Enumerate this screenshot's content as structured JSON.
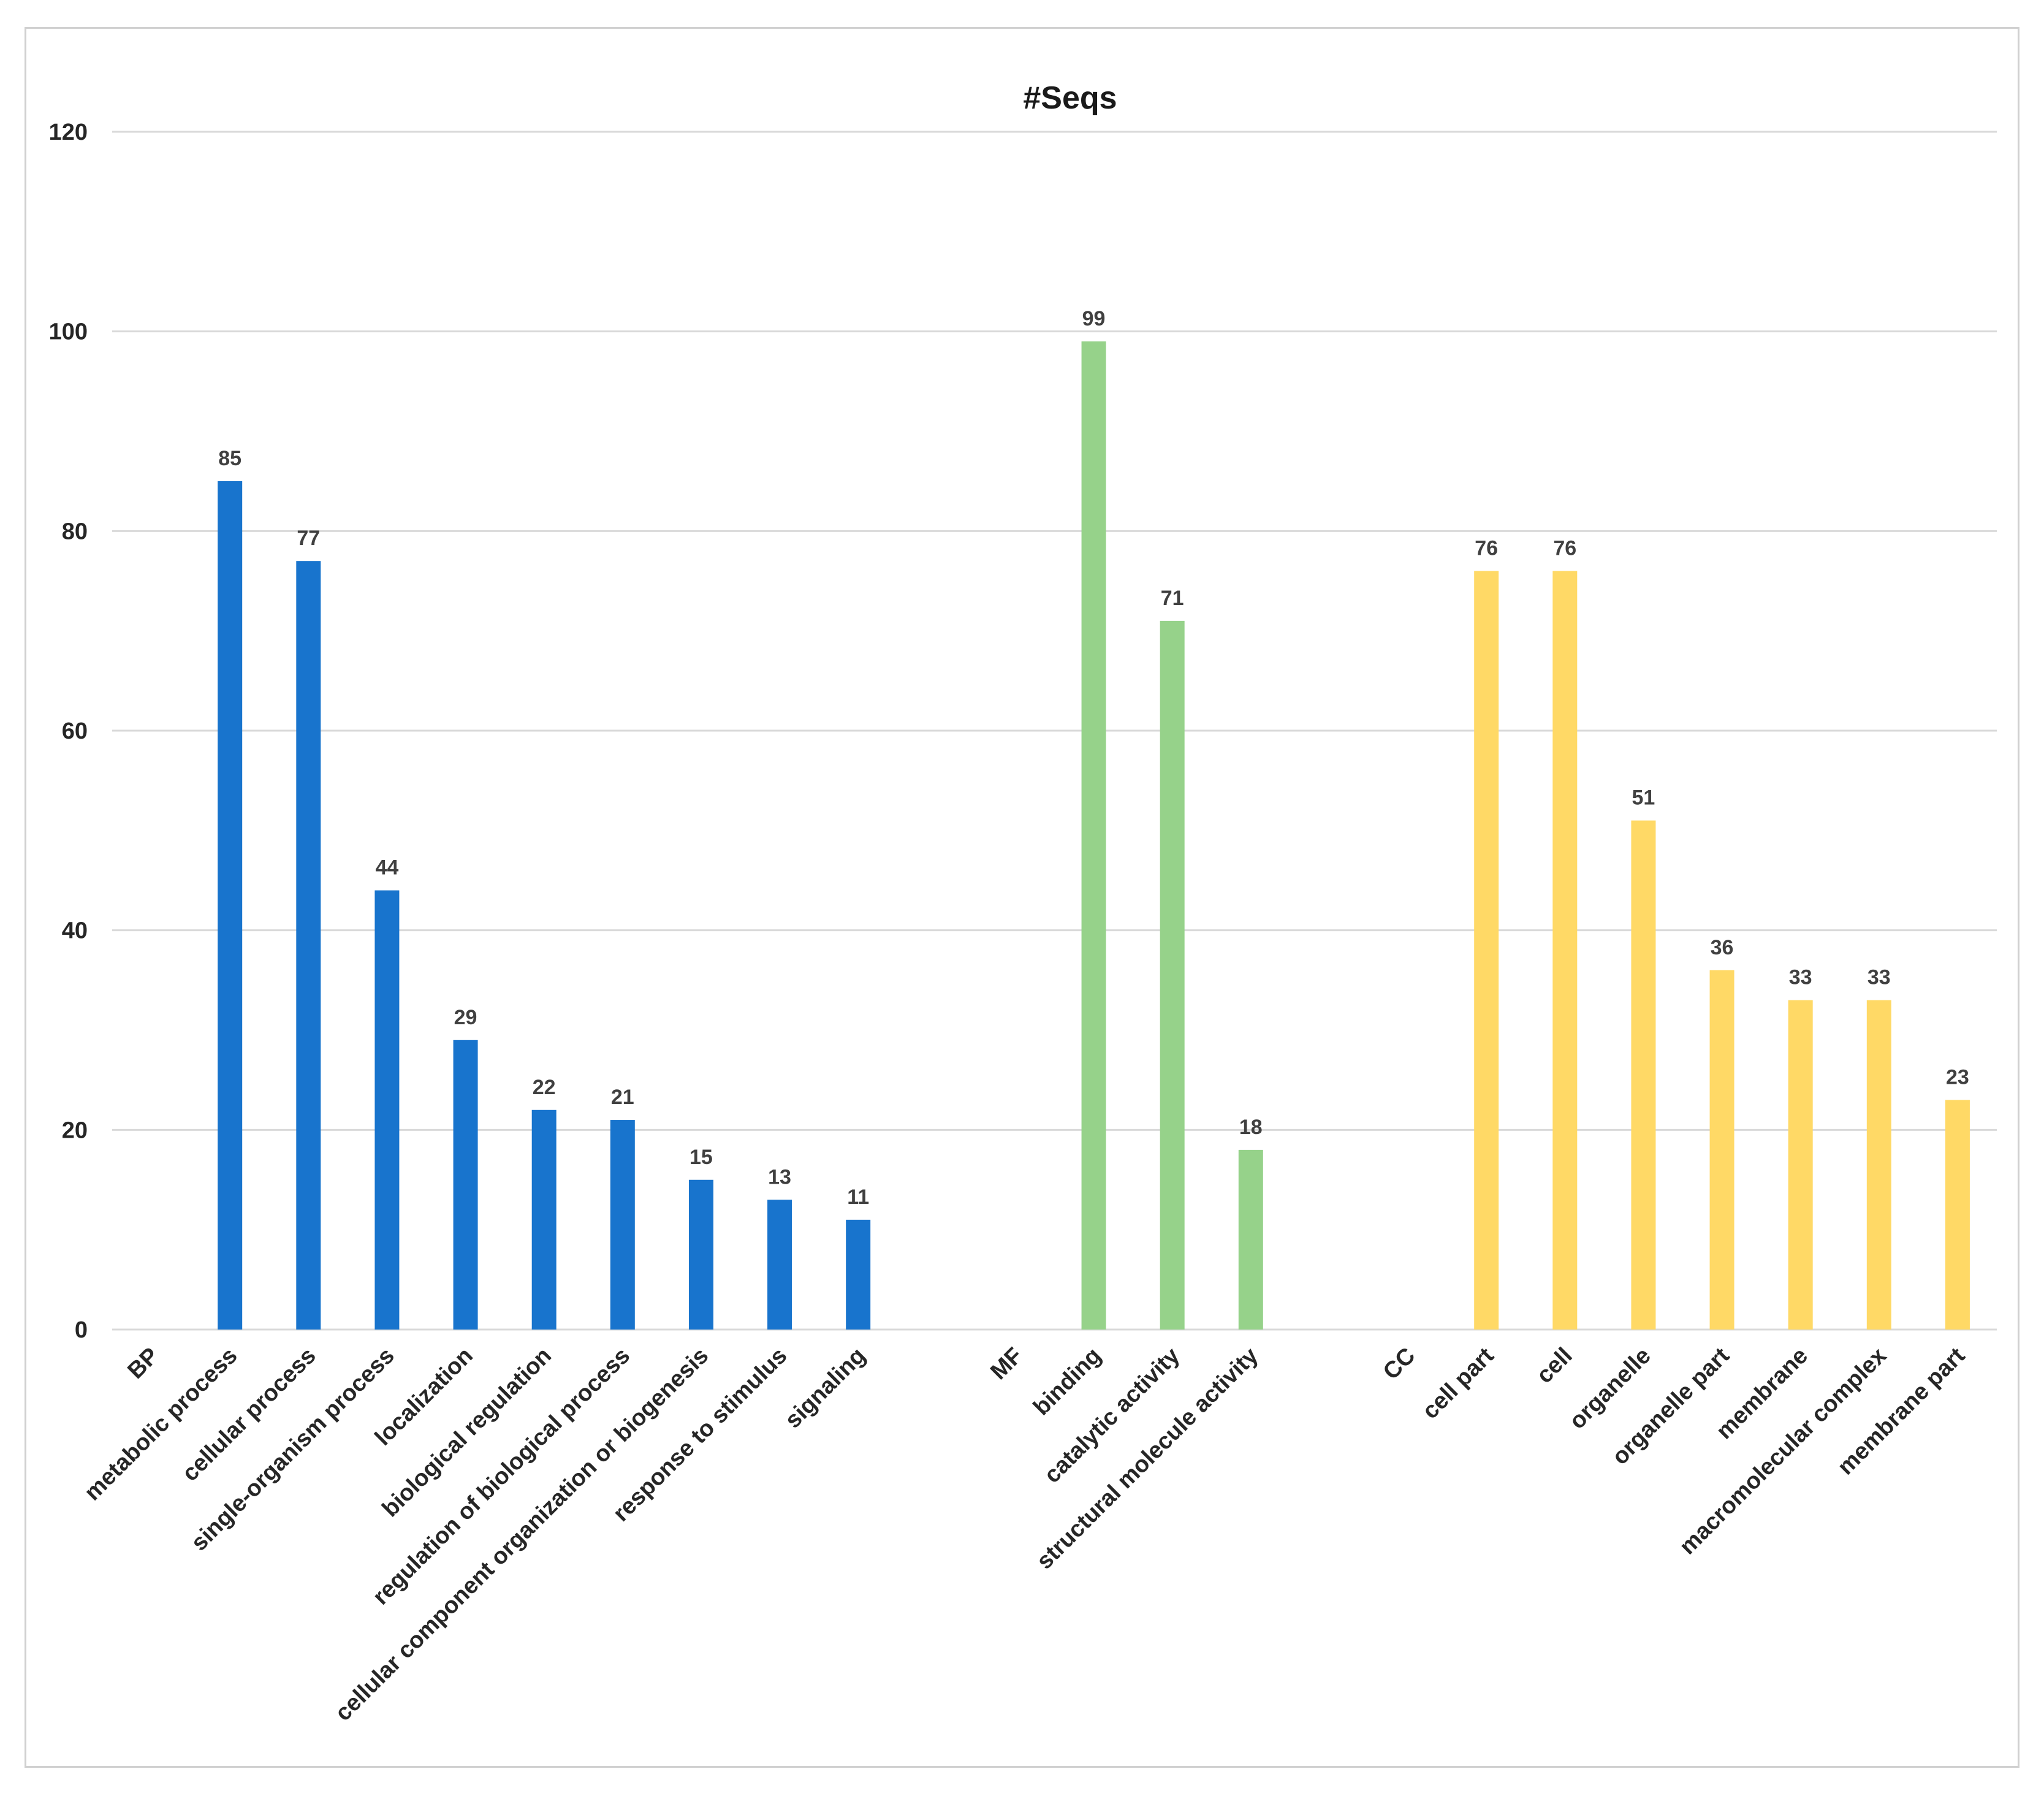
{
  "chart_data": {
    "type": "bar",
    "title": "#Seqs",
    "xlabel": "",
    "ylabel": "",
    "ylim": [
      0,
      120
    ],
    "yticks": [
      "0",
      "20",
      "40",
      "60",
      "80",
      "100",
      "120"
    ],
    "grid": true,
    "legend": "none",
    "categories": [
      "BP",
      "metabolic process",
      "cellular process",
      "single-organism process",
      "localization",
      "biological regulation",
      "regulation of biological process",
      "cellular component organization or biogenesis",
      "response to stimulus",
      "signaling",
      "",
      "MF",
      "binding",
      "catalytic activity",
      "structural molecule activity",
      "",
      "CC",
      "cell part",
      "cell",
      "organelle",
      "organelle part",
      "membrane",
      "macromolecular complex",
      "membrane part"
    ],
    "values": [
      null,
      85,
      77,
      44,
      29,
      22,
      21,
      15,
      13,
      11,
      null,
      null,
      99,
      71,
      18,
      null,
      null,
      76,
      76,
      51,
      36,
      33,
      33,
      23
    ],
    "labels": [
      "",
      "85",
      "77",
      "44",
      "29",
      "22",
      "21",
      "15",
      "13",
      "11",
      "",
      "",
      "99",
      "71",
      "18",
      "",
      "",
      "76",
      "76",
      "51",
      "36",
      "33",
      "33",
      "23"
    ],
    "bar_colors": {
      "BP": "#1874cd",
      "MF": "#96d28a",
      "CC": "#ffd966"
    },
    "groups": [
      "BP",
      "BP",
      "BP",
      "BP",
      "BP",
      "BP",
      "BP",
      "BP",
      "BP",
      "BP",
      "",
      "MF",
      "MF",
      "MF",
      "MF",
      "",
      "CC",
      "CC",
      "CC",
      "CC",
      "CC",
      "CC",
      "CC",
      "CC"
    ]
  }
}
